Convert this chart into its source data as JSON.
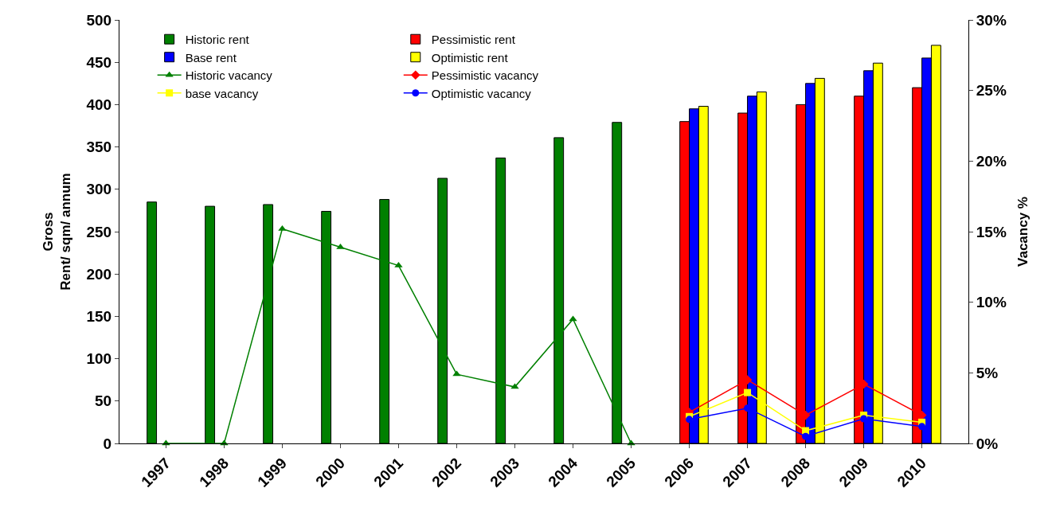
{
  "chart_data": {
    "type": "bar",
    "categories": [
      "1997",
      "1998",
      "1999",
      "2000",
      "2001",
      "2002",
      "2003",
      "2004",
      "2005",
      "2006",
      "2007",
      "2008",
      "2009",
      "2010"
    ],
    "ylabel": "Gross\nRent/ sqm/ annum",
    "y2label": "Vacancy %",
    "ylim": [
      0,
      500
    ],
    "yticks": [
      0,
      50,
      100,
      150,
      200,
      250,
      300,
      350,
      400,
      450,
      500
    ],
    "y2lim": [
      0,
      30
    ],
    "y2ticks": [
      {
        "value": 0,
        "label": "0%"
      },
      {
        "value": 5,
        "label": "5%"
      },
      {
        "value": 10,
        "label": "10%"
      },
      {
        "value": 15,
        "label": "15%"
      },
      {
        "value": 20,
        "label": "20%"
      },
      {
        "value": 25,
        "label": "25%"
      },
      {
        "value": 30,
        "label": "30%"
      }
    ],
    "grid": false,
    "legend": "top",
    "series": [
      {
        "name": "Historic rent",
        "color": "#008000",
        "values": [
          285,
          280,
          282,
          274,
          288,
          313,
          337,
          361,
          379,
          null,
          null,
          null,
          null,
          null
        ]
      },
      {
        "name": "Pessimistic rent",
        "color": "#ff0000",
        "values": [
          null,
          null,
          null,
          null,
          null,
          null,
          null,
          null,
          null,
          380,
          390,
          400,
          410,
          420
        ]
      },
      {
        "name": "Base rent",
        "color": "#0000ff",
        "values": [
          null,
          null,
          null,
          null,
          null,
          null,
          null,
          null,
          null,
          395,
          410,
          425,
          440,
          455
        ]
      },
      {
        "name": "Optimistic rent",
        "color": "#ffff00",
        "values": [
          null,
          null,
          null,
          null,
          null,
          null,
          null,
          null,
          null,
          398,
          415,
          431,
          449,
          470
        ]
      },
      {
        "name": "Historic vacancy",
        "type": "line",
        "axis": "y2",
        "marker": "triangle",
        "color": "#008000",
        "values": [
          0,
          0,
          15.2,
          13.9,
          12.6,
          4.9,
          4.0,
          8.8,
          0,
          null,
          null,
          null,
          null,
          null
        ]
      },
      {
        "name": "Pessimistic vacancy",
        "type": "line",
        "axis": "y2",
        "marker": "diamond",
        "color": "#ff0000",
        "values": [
          null,
          null,
          null,
          null,
          null,
          null,
          null,
          null,
          null,
          2.2,
          4.5,
          2.0,
          4.2,
          2.0
        ]
      },
      {
        "name": "base vacancy",
        "type": "line",
        "axis": "y2",
        "marker": "square",
        "color": "#ffff00",
        "values": [
          null,
          null,
          null,
          null,
          null,
          null,
          null,
          null,
          null,
          1.9,
          3.6,
          0.9,
          2.0,
          1.5
        ]
      },
      {
        "name": "Optimistic vacancy",
        "type": "line",
        "axis": "y2",
        "marker": "circle",
        "color": "#0000ff",
        "values": [
          null,
          null,
          null,
          null,
          null,
          null,
          null,
          null,
          null,
          1.7,
          2.5,
          0.5,
          1.75,
          1.2
        ]
      }
    ]
  }
}
